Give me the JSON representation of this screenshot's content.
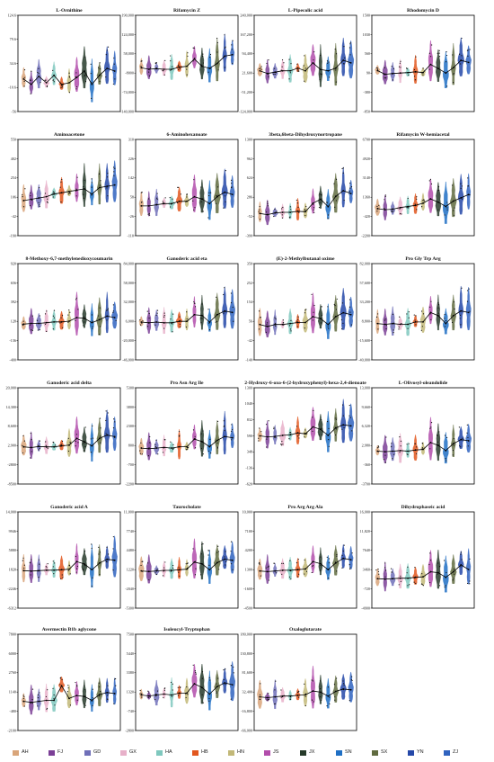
{
  "groups": [
    "AH",
    "FJ",
    "GD",
    "GX",
    "HA",
    "HB",
    "HN",
    "JS",
    "JX",
    "SN",
    "SX",
    "YN",
    "ZJ"
  ],
  "group_colors": [
    "#D9A57A",
    "#7B3F96",
    "#6F6FB8",
    "#E7B0C9",
    "#7FC8BE",
    "#E2571F",
    "#C2B878",
    "#B24DAB",
    "#263A2A",
    "#1F6FC4",
    "#606B3F",
    "#2548A8",
    "#2F63BF"
  ],
  "legend": [
    {
      "label": "AH"
    },
    {
      "label": "FJ"
    },
    {
      "label": "GD"
    },
    {
      "label": "GX"
    },
    {
      "label": "HA"
    },
    {
      "label": "HB"
    },
    {
      "label": "HN"
    },
    {
      "label": "JS"
    },
    {
      "label": "JX"
    },
    {
      "label": "SN"
    },
    {
      "label": "SX"
    },
    {
      "label": "YN"
    },
    {
      "label": "ZJ"
    }
  ],
  "chart_data": [
    {
      "type": "violin",
      "title": "L-Ornithine",
      "yticks": [
        "124.6",
        "79.6",
        "34.6",
        "-10.6",
        "-56"
      ],
      "ylim": [
        -56,
        124.6
      ],
      "medians": [
        5,
        -5,
        10,
        -2,
        12,
        -5,
        -2,
        8,
        20,
        -5,
        12,
        25,
        20
      ]
    },
    {
      "type": "violin",
      "title": "Rifamycin Z",
      "yticks": [
        "190,000",
        "124,000",
        "58,000",
        "-8000",
        "-74,000",
        "-140,000"
      ],
      "ylim": [
        -140000,
        190000
      ],
      "medians": [
        10000,
        5000,
        7000,
        5000,
        5000,
        12000,
        15000,
        40000,
        15000,
        8000,
        25000,
        50000,
        55000
      ]
    },
    {
      "type": "violin",
      "title": "L-Pipecolic acid",
      "yticks": [
        "240,000",
        "167,200",
        "94,400",
        "21,600",
        "-51,200",
        "-124,000"
      ],
      "ylim": [
        -124000,
        240000
      ],
      "medians": [
        30000,
        20000,
        25000,
        30000,
        30000,
        40000,
        30000,
        60000,
        35000,
        30000,
        40000,
        70000,
        60000
      ]
    },
    {
      "type": "violin",
      "title": "Rhodomycin D",
      "yticks": [
        "1500",
        "1030",
        "560",
        "90",
        "-380",
        "-850"
      ],
      "ylim": [
        -850,
        1500
      ],
      "medians": [
        150,
        60,
        80,
        90,
        100,
        120,
        100,
        300,
        200,
        90,
        220,
        400,
        350
      ]
    },
    {
      "type": "violin",
      "title": "Aminoacetone",
      "yticks": [
        "550",
        "402",
        "254",
        "106",
        "-42",
        "-190"
      ],
      "ylim": [
        -190,
        550
      ],
      "medians": [
        80,
        90,
        100,
        110,
        130,
        140,
        150,
        160,
        170,
        130,
        180,
        190,
        200
      ]
    },
    {
      "type": "violin",
      "title": "6-Aminohexanoate",
      "yticks": [
        "310",
        "226",
        "142",
        "58",
        "-26",
        "-110"
      ],
      "ylim": [
        -110,
        310
      ],
      "medians": [
        20,
        20,
        25,
        30,
        30,
        40,
        40,
        60,
        50,
        30,
        60,
        80,
        70
      ]
    },
    {
      "type": "violin",
      "title": "3beta,6beta-Dihydroxynortropane",
      "yticks": [
        "1300",
        "962",
        "624",
        "286",
        "-52",
        "-390"
      ],
      "ylim": [
        -390,
        1300
      ],
      "medians": [
        0,
        -20,
        10,
        20,
        20,
        40,
        30,
        180,
        250,
        120,
        300,
        400,
        350
      ]
    },
    {
      "type": "violin",
      "title": "Rifamycin W-hemiacetal",
      "yticks": [
        "6700",
        "4920",
        "3140",
        "1360",
        "-420",
        "-2200"
      ],
      "ylim": [
        -2200,
        6700
      ],
      "medians": [
        300,
        200,
        250,
        400,
        500,
        600,
        800,
        1200,
        900,
        500,
        1000,
        1300,
        1600
      ]
    },
    {
      "type": "violin",
      "title": "8-Methoxy-6,7-methylenedioxycoumarin",
      "yticks": [
        "920",
        "656",
        "392",
        "128",
        "-136",
        "-400"
      ],
      "ylim": [
        -400,
        920
      ],
      "medians": [
        90,
        100,
        100,
        110,
        120,
        120,
        130,
        180,
        170,
        110,
        150,
        200,
        180
      ]
    },
    {
      "type": "violin",
      "title": "Ganoderic acid eta",
      "yticks": [
        "84,000",
        "58,000",
        "32,000",
        "6,000",
        "-20,000",
        "-46,000"
      ],
      "ylim": [
        -46000,
        84000
      ],
      "medians": [
        5000,
        4000,
        5000,
        4000,
        4000,
        6000,
        6000,
        15000,
        14000,
        5000,
        15000,
        20000,
        18000
      ]
    },
    {
      "type": "violin",
      "title": "(E)-2-Methylbutanal oxime",
      "yticks": [
        "350",
        "252",
        "154",
        "56",
        "-42",
        "-140"
      ],
      "ylim": [
        -140,
        350
      ],
      "medians": [
        40,
        30,
        40,
        40,
        45,
        50,
        50,
        80,
        70,
        40,
        80,
        100,
        90
      ]
    },
    {
      "type": "violin",
      "title": "Pro Gly Trp Arg",
      "yticks": [
        "82,000",
        "57,600",
        "33,200",
        "8,800",
        "-15,600",
        "-40,000"
      ],
      "ylim": [
        -40000,
        82000
      ],
      "medians": [
        6000,
        5000,
        6000,
        5000,
        5000,
        8000,
        8000,
        20000,
        16000,
        6000,
        16000,
        22000,
        20000
      ]
    },
    {
      "type": "violin",
      "title": "Ganoderic acid delta",
      "yticks": [
        "20,000",
        "14,300",
        "8,600",
        "2,900",
        "-2800",
        "-8500"
      ],
      "ylim": [
        -8500,
        20000
      ],
      "medians": [
        2500,
        2300,
        2600,
        2500,
        2500,
        2800,
        3000,
        5000,
        4000,
        2800,
        5000,
        6000,
        5500
      ]
    },
    {
      "type": "violin",
      "title": "Pro Asn Arg Ile",
      "yticks": [
        "5300",
        "3800",
        "2300",
        "800",
        "-700",
        "-2200"
      ],
      "ylim": [
        -2200,
        5300
      ],
      "medians": [
        600,
        550,
        600,
        650,
        600,
        700,
        700,
        1300,
        1100,
        700,
        1200,
        1500,
        1400
      ]
    },
    {
      "type": "violin",
      "title": "2-Hydroxy-6-oxo-6-(2-hydroxyphenyl)-hexa-2,4-dienoate",
      "yticks": [
        "1300",
        "1040",
        "832",
        "590",
        "348",
        "-136",
        "-620"
      ],
      "ylim": [
        -620,
        1300
      ],
      "medians": [
        340,
        320,
        330,
        350,
        360,
        400,
        380,
        520,
        470,
        350,
        500,
        560,
        540
      ]
    },
    {
      "type": "violin",
      "title": "L-Olivosyl-oleandolide",
      "yticks": [
        "13,000",
        "9,660",
        "6,320",
        "2,980",
        "-360",
        "-3700"
      ],
      "ylim": [
        -3700,
        13000
      ],
      "medians": [
        2000,
        1900,
        2000,
        2100,
        2000,
        2200,
        2300,
        3500,
        3000,
        2100,
        3300,
        4000,
        3800
      ]
    },
    {
      "type": "violin",
      "title": "Ganoderic acid A",
      "yticks": [
        "14,000",
        "9946",
        "5880",
        "1820",
        "-2246",
        "-6312"
      ],
      "ylim": [
        -6312,
        14000
      ],
      "medians": [
        1600,
        1500,
        1600,
        1700,
        1700,
        1800,
        1900,
        3500,
        3000,
        1800,
        3200,
        4000,
        3800
      ]
    },
    {
      "type": "violin",
      "title": "Taurocholate",
      "yticks": [
        "11,000",
        "7740",
        "4480",
        "1220",
        "-2040",
        "-5300"
      ],
      "ylim": [
        -5300,
        11000
      ],
      "medians": [
        1000,
        900,
        1000,
        1100,
        1100,
        1200,
        1300,
        2500,
        2200,
        1200,
        2400,
        3000,
        2800
      ]
    },
    {
      "type": "violin",
      "title": "Pro Arg Arg Ala",
      "yticks": [
        "10,000",
        "7100",
        "4200",
        "1300",
        "-1600",
        "-4500"
      ],
      "ylim": [
        -4500,
        10000
      ],
      "medians": [
        1100,
        1000,
        1100,
        1200,
        1200,
        1300,
        1400,
        2500,
        2200,
        1300,
        2300,
        3000,
        2800
      ]
    },
    {
      "type": "violin",
      "title": "Dihydrophaseic acid",
      "yticks": [
        "16,000",
        "11,820",
        "7640",
        "3460",
        "-720",
        "-4900"
      ],
      "ylim": [
        -4900,
        16000
      ],
      "medians": [
        1500,
        1400,
        1500,
        1600,
        1600,
        1800,
        1900,
        3000,
        2800,
        1800,
        3000,
        4500,
        3500
      ]
    },
    {
      "type": "violin",
      "title": "Avermectin B1b aglycone",
      "yticks": [
        "7800",
        "6000",
        "2760",
        "1140",
        "-480",
        "-2100"
      ],
      "ylim": [
        -2100,
        7800
      ],
      "medians": [
        900,
        800,
        900,
        1000,
        1000,
        2500,
        1200,
        1500,
        1400,
        1000,
        1600,
        1800,
        1700
      ]
    },
    {
      "type": "violin",
      "title": "Isoleucyl-Tryptophan",
      "yticks": [
        "7500",
        "5440",
        "3380",
        "1320",
        "-740",
        "-2800"
      ],
      "ylim": [
        -2800,
        7500
      ],
      "medians": [
        1000,
        900,
        1000,
        1100,
        1000,
        1200,
        1200,
        2200,
        1800,
        1100,
        1900,
        2300,
        2100
      ]
    },
    {
      "type": "violin",
      "title": "Oxaloglutarate",
      "yticks": [
        "180,000",
        "130,800",
        "81,600",
        "32,400",
        "-16,800",
        "-66,000"
      ],
      "ylim": [
        -66000,
        180000
      ],
      "medians": [
        20000,
        18000,
        20000,
        22000,
        22000,
        24000,
        25000,
        35000,
        32000,
        22000,
        34000,
        40000,
        38000
      ]
    }
  ]
}
